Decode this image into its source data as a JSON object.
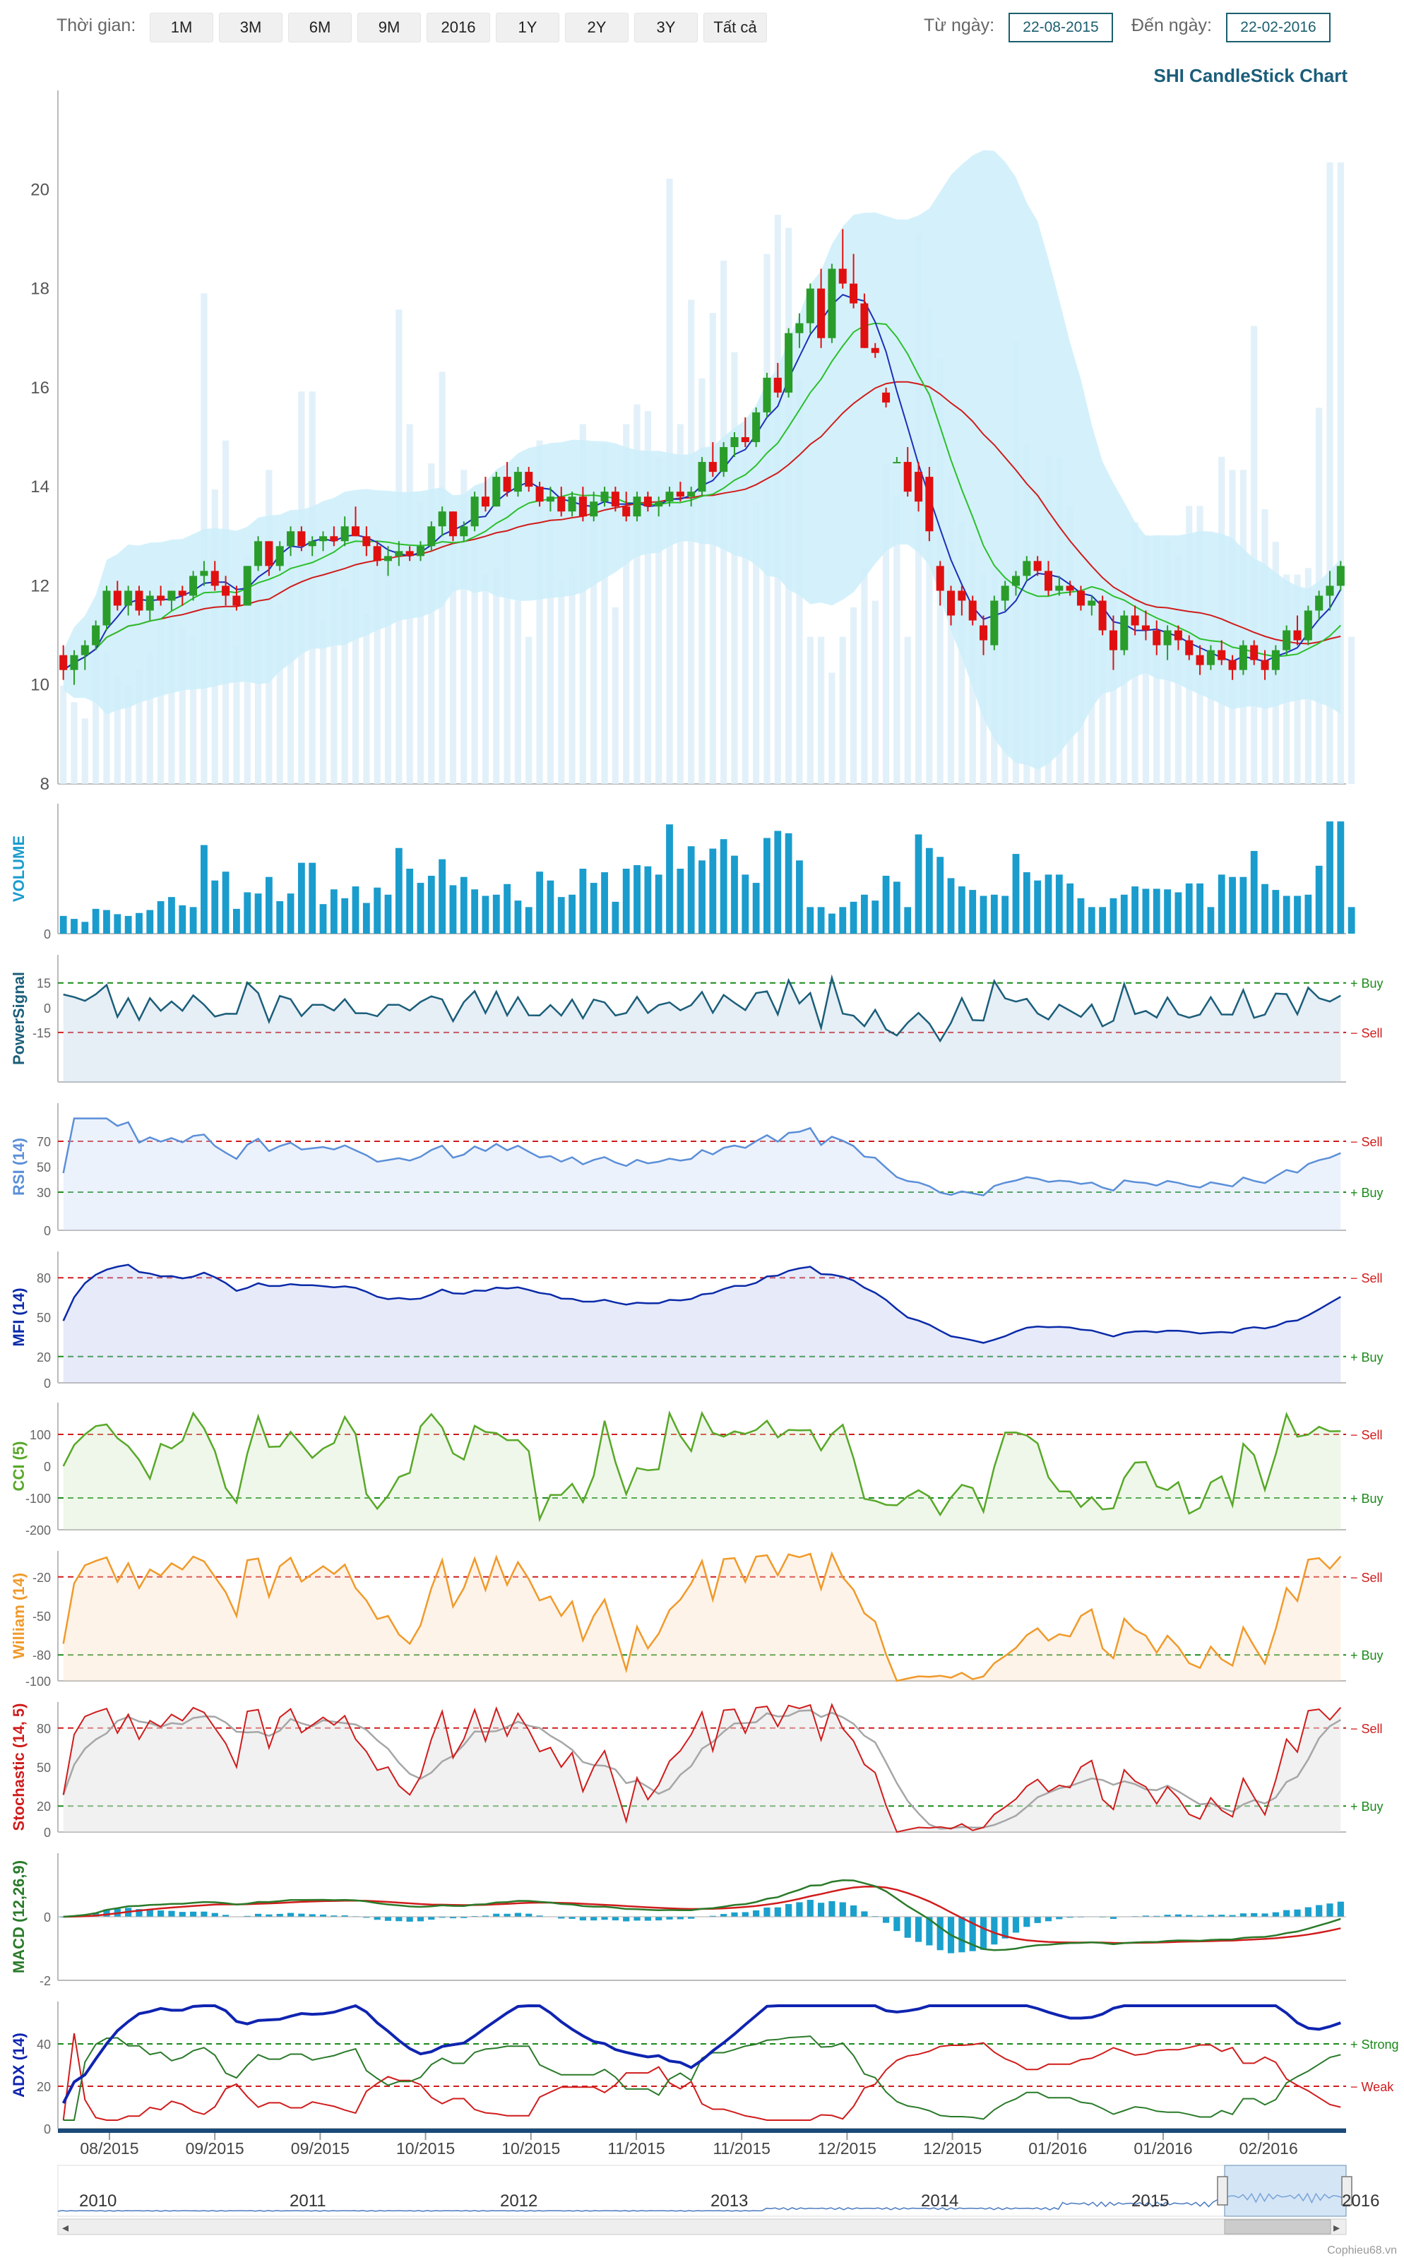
{
  "toolbar": {
    "range_label": "Thời gian:",
    "range_buttons": [
      "1M",
      "3M",
      "6M",
      "9M",
      "2016",
      "1Y",
      "2Y",
      "3Y",
      "Tất cả"
    ],
    "from_label": "Từ ngày:",
    "from_value": "22-08-2015",
    "to_label": "Đến ngày:",
    "to_value": "22-02-2016"
  },
  "title": "SHI CandleStick Chart",
  "credit": "Cophieu68.vn",
  "colors": {
    "up": "#2a9c2a",
    "down": "#e01010",
    "band": "#cdeefa",
    "ma_fast": "#1c2fb8",
    "ma_mid": "#2cbf2c",
    "ma_slow": "#d01c1c",
    "volume": "#1a9ccd",
    "power": "#1b5e7a",
    "rsi": "#5b8fd8",
    "mfi": "#0a2aa8",
    "cci": "#58a828",
    "william": "#f09a2a",
    "stoch_k": "#d01c1c",
    "stoch_d": "#a6a6a6",
    "macd": "#2a7a2a",
    "macd_signal": "#d01c1c",
    "macd_hist": "#1aa0cc",
    "adx": "#0f24b0",
    "di_plus": "#2a7a2a",
    "di_minus": "#d01c1c",
    "buy": "#1a8a1a",
    "sell": "#d01c1c"
  },
  "chart_data": {
    "type": "candlestick",
    "x_tick_labels": [
      "08/2015",
      "09/2015",
      "09/2015",
      "10/2015",
      "10/2015",
      "11/2015",
      "11/2015",
      "12/2015",
      "12/2015",
      "01/2016",
      "01/2016",
      "02/2016"
    ],
    "navigator_years": [
      "2010",
      "2011",
      "2012",
      "2013",
      "2014",
      "2015",
      "2016"
    ],
    "price_axis": {
      "ticks": [
        8,
        10,
        12,
        14,
        16,
        18,
        20
      ],
      "range": [
        8,
        22
      ]
    },
    "price_ohlc": {
      "points": 119,
      "note": "open/high/low/close estimated from the candlestick panel",
      "data": [
        [
          10.6,
          10.8,
          10.1,
          10.3
        ],
        [
          10.3,
          10.7,
          10.0,
          10.6
        ],
        [
          10.6,
          10.9,
          10.3,
          10.8
        ],
        [
          10.8,
          11.3,
          10.7,
          11.2
        ],
        [
          11.2,
          12.0,
          11.1,
          11.9
        ],
        [
          11.9,
          12.1,
          11.5,
          11.6
        ],
        [
          11.6,
          12.0,
          11.4,
          11.9
        ],
        [
          11.9,
          12.0,
          11.4,
          11.5
        ],
        [
          11.5,
          11.9,
          11.3,
          11.8
        ],
        [
          11.8,
          12.0,
          11.6,
          11.7
        ],
        [
          11.7,
          11.9,
          11.5,
          11.9
        ],
        [
          11.9,
          12.0,
          11.6,
          11.8
        ],
        [
          11.8,
          12.3,
          11.7,
          12.2
        ],
        [
          12.2,
          12.5,
          12.0,
          12.3
        ],
        [
          12.3,
          12.5,
          11.9,
          12.0
        ],
        [
          12.0,
          12.2,
          11.6,
          11.8
        ],
        [
          11.8,
          12.0,
          11.5,
          11.6
        ],
        [
          11.6,
          12.4,
          11.6,
          12.4
        ],
        [
          12.4,
          13.0,
          12.3,
          12.9
        ],
        [
          12.9,
          12.9,
          12.2,
          12.4
        ],
        [
          12.4,
          12.9,
          12.3,
          12.8
        ],
        [
          12.8,
          13.2,
          12.6,
          13.1
        ],
        [
          13.1,
          13.2,
          12.7,
          12.8
        ],
        [
          12.8,
          13.0,
          12.6,
          12.9
        ],
        [
          12.9,
          13.1,
          12.7,
          13.0
        ],
        [
          13.0,
          13.2,
          12.8,
          12.9
        ],
        [
          12.9,
          13.4,
          12.8,
          13.2
        ],
        [
          13.2,
          13.6,
          13.0,
          13.0
        ],
        [
          13.0,
          13.2,
          12.6,
          12.8
        ],
        [
          12.8,
          12.9,
          12.4,
          12.5
        ],
        [
          12.5,
          12.8,
          12.2,
          12.6
        ],
        [
          12.6,
          12.9,
          12.4,
          12.7
        ],
        [
          12.7,
          12.8,
          12.5,
          12.6
        ],
        [
          12.6,
          12.9,
          12.5,
          12.8
        ],
        [
          12.8,
          13.3,
          12.7,
          13.2
        ],
        [
          13.2,
          13.6,
          13.0,
          13.5
        ],
        [
          13.5,
          13.5,
          12.9,
          13.0
        ],
        [
          13.0,
          13.3,
          12.9,
          13.2
        ],
        [
          13.2,
          13.9,
          13.1,
          13.8
        ],
        [
          13.8,
          14.2,
          13.5,
          13.6
        ],
        [
          13.6,
          14.3,
          13.6,
          14.2
        ],
        [
          14.2,
          14.5,
          13.8,
          13.9
        ],
        [
          13.9,
          14.4,
          13.8,
          14.3
        ],
        [
          14.3,
          14.4,
          13.9,
          14.0
        ],
        [
          14.0,
          14.1,
          13.6,
          13.7
        ],
        [
          13.7,
          14.0,
          13.5,
          13.8
        ],
        [
          13.8,
          14.0,
          13.4,
          13.5
        ],
        [
          13.5,
          13.9,
          13.4,
          13.8
        ],
        [
          13.8,
          14.0,
          13.3,
          13.4
        ],
        [
          13.4,
          13.9,
          13.3,
          13.7
        ],
        [
          13.7,
          14.0,
          13.6,
          13.9
        ],
        [
          13.9,
          14.0,
          13.5,
          13.6
        ],
        [
          13.6,
          13.9,
          13.3,
          13.4
        ],
        [
          13.4,
          13.9,
          13.3,
          13.8
        ],
        [
          13.8,
          13.9,
          13.5,
          13.6
        ],
        [
          13.6,
          13.8,
          13.4,
          13.7
        ],
        [
          13.7,
          14.0,
          13.6,
          13.9
        ],
        [
          13.9,
          14.1,
          13.7,
          13.8
        ],
        [
          13.8,
          14.0,
          13.6,
          13.9
        ],
        [
          13.9,
          14.6,
          13.8,
          14.5
        ],
        [
          14.5,
          14.9,
          14.2,
          14.3
        ],
        [
          14.3,
          14.9,
          14.2,
          14.8
        ],
        [
          14.8,
          15.1,
          14.6,
          15.0
        ],
        [
          15.0,
          15.4,
          14.8,
          14.9
        ],
        [
          14.9,
          15.6,
          14.8,
          15.5
        ],
        [
          15.5,
          16.3,
          15.4,
          16.2
        ],
        [
          16.2,
          16.5,
          15.8,
          15.9
        ],
        [
          15.9,
          17.2,
          15.8,
          17.1
        ],
        [
          17.1,
          17.5,
          16.8,
          17.3
        ],
        [
          17.3,
          18.1,
          17.1,
          18.0
        ],
        [
          18.0,
          18.4,
          16.8,
          17.0
        ],
        [
          17.0,
          18.5,
          16.9,
          18.4
        ],
        [
          18.4,
          19.2,
          18.0,
          18.1
        ],
        [
          18.1,
          18.7,
          17.6,
          17.7
        ],
        [
          17.7,
          17.9,
          16.8,
          16.8
        ],
        [
          16.8,
          16.9,
          16.6,
          16.7
        ],
        [
          15.9,
          16.0,
          15.6,
          15.7
        ],
        [
          14.5,
          14.6,
          14.5,
          14.5
        ],
        [
          14.5,
          14.8,
          13.8,
          13.9
        ],
        [
          14.3,
          14.5,
          13.5,
          13.7
        ],
        [
          14.2,
          14.4,
          12.9,
          13.1
        ],
        [
          12.4,
          12.5,
          11.6,
          11.9
        ],
        [
          11.9,
          12.0,
          11.2,
          11.4
        ],
        [
          11.9,
          12.0,
          11.4,
          11.7
        ],
        [
          11.7,
          11.8,
          11.2,
          11.3
        ],
        [
          11.2,
          11.4,
          10.6,
          10.9
        ],
        [
          10.8,
          11.8,
          10.7,
          11.7
        ],
        [
          11.7,
          12.1,
          11.5,
          12.0
        ],
        [
          12.0,
          12.3,
          11.8,
          12.2
        ],
        [
          12.2,
          12.6,
          12.1,
          12.5
        ],
        [
          12.5,
          12.6,
          12.2,
          12.3
        ],
        [
          12.3,
          12.5,
          11.8,
          11.9
        ],
        [
          11.9,
          12.2,
          11.8,
          12.0
        ],
        [
          12.0,
          12.1,
          11.8,
          11.9
        ],
        [
          11.9,
          12.0,
          11.5,
          11.6
        ],
        [
          11.6,
          11.8,
          11.4,
          11.7
        ],
        [
          11.7,
          11.8,
          11.0,
          11.1
        ],
        [
          11.1,
          11.4,
          10.3,
          10.7
        ],
        [
          10.7,
          11.5,
          10.6,
          11.4
        ],
        [
          11.4,
          11.6,
          11.0,
          11.2
        ],
        [
          11.2,
          11.5,
          10.9,
          11.1
        ],
        [
          11.1,
          11.3,
          10.6,
          10.8
        ],
        [
          10.8,
          11.2,
          10.5,
          11.1
        ],
        [
          11.1,
          11.2,
          10.7,
          10.9
        ],
        [
          10.9,
          11.0,
          10.5,
          10.6
        ],
        [
          10.6,
          10.8,
          10.2,
          10.4
        ],
        [
          10.4,
          10.8,
          10.3,
          10.7
        ],
        [
          10.7,
          10.9,
          10.4,
          10.5
        ],
        [
          10.5,
          10.6,
          10.1,
          10.3
        ],
        [
          10.3,
          10.9,
          10.2,
          10.8
        ],
        [
          10.8,
          10.9,
          10.4,
          10.5
        ],
        [
          10.5,
          10.7,
          10.1,
          10.3
        ],
        [
          10.3,
          10.8,
          10.2,
          10.7
        ],
        [
          10.7,
          11.2,
          10.6,
          11.1
        ],
        [
          11.1,
          11.4,
          10.8,
          10.9
        ],
        [
          10.9,
          11.6,
          10.8,
          11.5
        ],
        [
          11.5,
          11.9,
          11.3,
          11.8
        ],
        [
          11.8,
          12.3,
          11.5,
          12.0
        ],
        [
          12.0,
          12.5,
          11.9,
          12.4
        ]
      ]
    },
    "volume_relative": [
      0.3,
      0.25,
      0.2,
      0.42,
      0.4,
      0.33,
      0.3,
      0.35,
      0.4,
      0.55,
      0.62,
      0.48,
      0.45,
      1.5,
      0.9,
      1.05,
      0.42,
      0.7,
      0.68,
      0.96,
      0.55,
      0.68,
      1.2,
      1.2,
      0.5,
      0.75,
      0.6,
      0.8,
      0.52,
      0.78,
      0.66,
      1.45,
      1.1,
      0.86,
      0.98,
      1.26,
      0.82,
      0.96,
      0.75,
      0.64,
      0.66,
      0.84,
      0.56,
      0.45,
      1.05,
      0.9,
      0.62,
      0.66,
      1.1,
      0.86,
      1.04,
      0.54,
      1.1,
      1.16,
      1.14,
      1.0,
      1.85,
      1.1,
      1.48,
      1.24,
      1.44,
      1.6,
      1.32,
      1.0,
      0.86,
      1.62,
      1.74,
      1.7,
      1.24,
      0.45,
      0.45,
      0.34,
      0.45,
      0.54,
      0.66,
      0.56,
      0.98,
      0.88,
      0.45,
      1.68,
      1.45,
      1.3,
      0.94,
      0.8,
      0.74,
      0.64,
      0.66,
      0.64,
      1.35,
      1.04,
      0.9,
      1.0,
      1.0,
      0.85,
      0.6,
      0.45,
      0.45,
      0.6,
      0.66,
      0.8,
      0.76,
      0.76,
      0.75,
      0.7,
      0.85,
      0.85,
      0.45,
      1.0,
      0.96,
      0.96,
      1.4,
      0.84,
      0.74,
      0.64,
      0.64,
      0.66,
      1.15,
      1.9,
      1.9,
      0.45
    ],
    "indicators": [
      {
        "name": "VOLUME",
        "ticks": [
          0
        ]
      },
      {
        "name": "PowerSignal",
        "ticks": [
          15,
          0,
          -15
        ],
        "buy_level": 15,
        "sell_level": -15,
        "buy_label": "+ Buy",
        "sell_label": "− Sell"
      },
      {
        "name": "RSI (14)",
        "ticks": [
          70,
          50,
          30,
          0
        ],
        "sell_level": 70,
        "buy_level": 30,
        "sell_label": "− Sell",
        "buy_label": "+ Buy"
      },
      {
        "name": "MFI (14)",
        "ticks": [
          80,
          50,
          20,
          0
        ],
        "sell_level": 80,
        "buy_level": 20,
        "sell_label": "− Sell",
        "buy_label": "+ Buy"
      },
      {
        "name": "CCI (5)",
        "ticks": [
          100,
          0,
          -100,
          -200
        ],
        "sell_level": 100,
        "buy_level": -100,
        "sell_label": "− Sell",
        "buy_label": "+ Buy"
      },
      {
        "name": "William (14)",
        "ticks": [
          -20,
          -50,
          -80,
          -100
        ],
        "sell_level": -20,
        "buy_level": -80,
        "sell_label": "− Sell",
        "buy_label": "+ Buy"
      },
      {
        "name": "Stochastic (14, 5)",
        "ticks": [
          80,
          50,
          20,
          0
        ],
        "sell_level": 80,
        "buy_level": 20,
        "sell_label": "− Sell",
        "buy_label": "+ Buy"
      },
      {
        "name": "MACD (12,26,9)",
        "ticks": [
          0,
          -2
        ]
      },
      {
        "name": "ADX (14)",
        "ticks": [
          40,
          20,
          0
        ],
        "strong_level": 40,
        "weak_level": 20,
        "strong_label": "+ Strong",
        "weak_label": "− Weak"
      }
    ]
  }
}
